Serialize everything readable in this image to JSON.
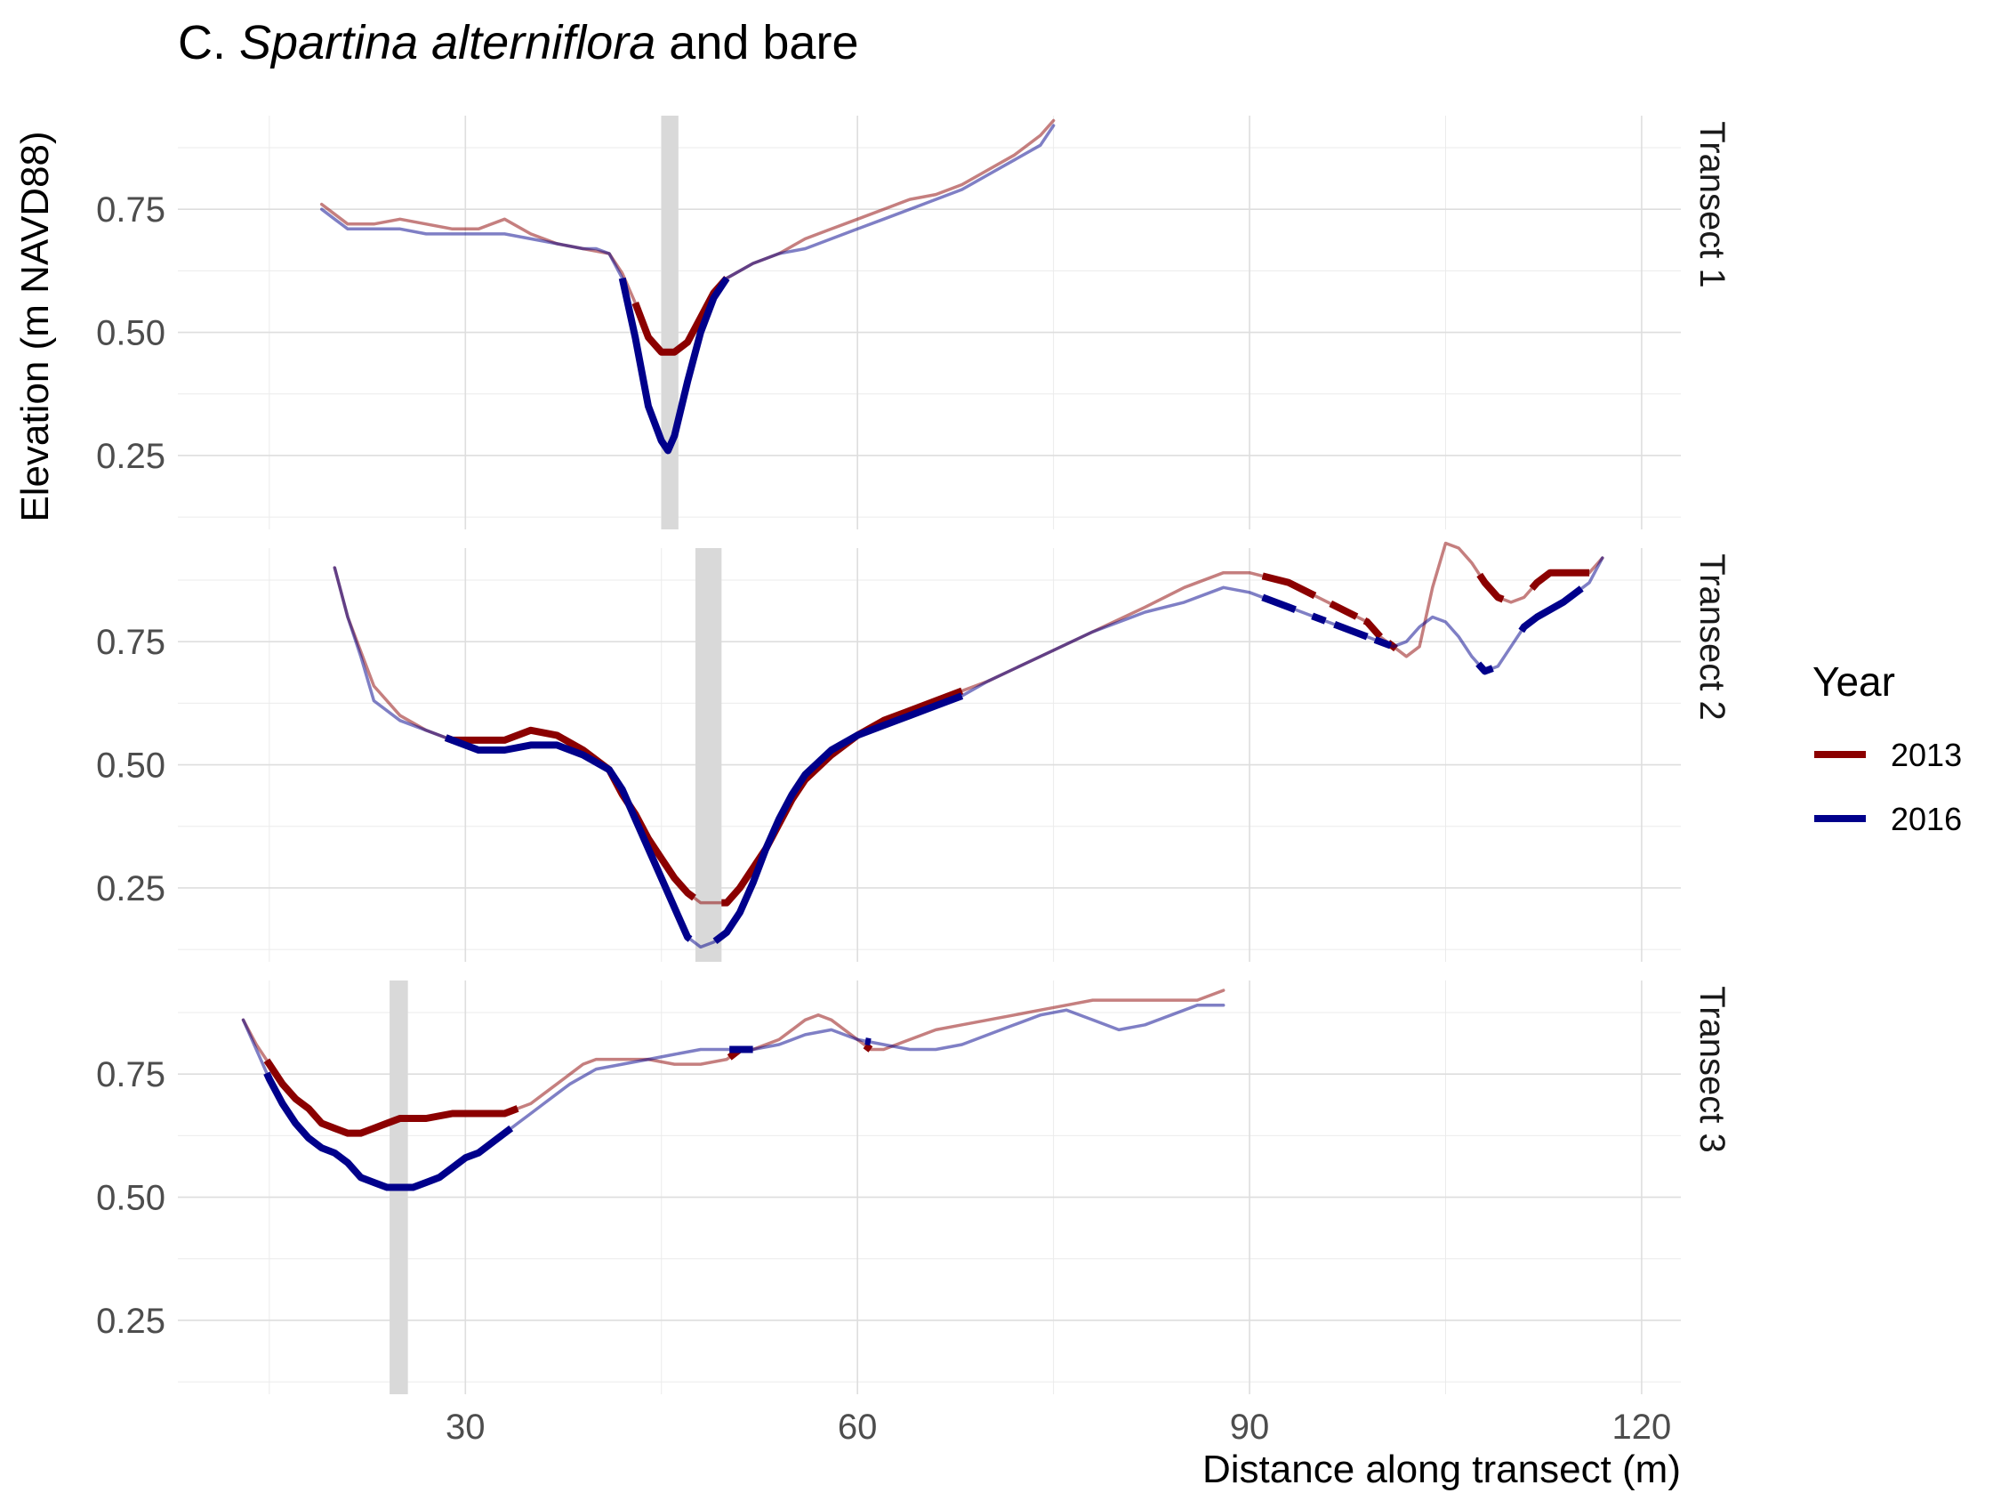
{
  "chart_data": {
    "type": "line",
    "title_prefix": "C.",
    "title_italic": "Spartina alterniflora",
    "title_suffix": "and bare",
    "xlabel": "Distance along transect (m)",
    "ylabel": "Elevation (m NAVD88)",
    "xlim": [
      8,
      123
    ],
    "ylim": [
      0.1,
      0.94
    ],
    "x_ticks": [
      30,
      60,
      90,
      120
    ],
    "y_ticks": [
      0.25,
      0.5,
      0.75
    ],
    "y_tick_labels": [
      "0.25",
      "0.50",
      "0.75"
    ],
    "grid": true,
    "legend": {
      "title": "Year",
      "position": "right",
      "entries": [
        "2013",
        "2016"
      ]
    },
    "colors": {
      "2013": "#8b0000",
      "2016": "#00008b",
      "bar": "#d9d9d9"
    },
    "panels": [
      {
        "label": "Transect 1",
        "bare_band": [
          45,
          46.3
        ],
        "series": [
          {
            "name": "2013",
            "x": [
              19,
              20,
              21,
              23,
              25,
              27,
              29,
              31,
              33,
              35,
              37,
              39,
              41,
              42,
              43,
              44,
              45,
              46,
              47,
              48,
              49,
              50,
              52,
              54,
              56,
              58,
              60,
              62,
              64,
              66,
              68,
              70,
              72,
              74,
              75
            ],
            "y": [
              0.76,
              0.74,
              0.72,
              0.72,
              0.73,
              0.72,
              0.71,
              0.71,
              0.73,
              0.7,
              0.68,
              0.67,
              0.66,
              0.62,
              0.56,
              0.49,
              0.46,
              0.46,
              0.48,
              0.53,
              0.58,
              0.61,
              0.64,
              0.66,
              0.69,
              0.71,
              0.73,
              0.75,
              0.77,
              0.78,
              0.8,
              0.83,
              0.86,
              0.9,
              0.93
            ],
            "bold_ranges": [
              [
                43,
                50
              ]
            ]
          },
          {
            "name": "2016",
            "x": [
              19,
              20,
              21,
              23,
              25,
              27,
              29,
              31,
              33,
              35,
              37,
              39,
              40,
              41,
              42,
              43,
              44,
              45,
              45.5,
              46,
              47,
              48,
              49,
              50,
              52,
              54,
              56,
              58,
              60,
              62,
              64,
              66,
              68,
              70,
              72,
              74,
              75
            ],
            "y": [
              0.75,
              0.73,
              0.71,
              0.71,
              0.71,
              0.7,
              0.7,
              0.7,
              0.7,
              0.69,
              0.68,
              0.67,
              0.67,
              0.66,
              0.61,
              0.49,
              0.35,
              0.28,
              0.26,
              0.29,
              0.4,
              0.5,
              0.57,
              0.61,
              0.64,
              0.66,
              0.67,
              0.69,
              0.71,
              0.73,
              0.75,
              0.77,
              0.79,
              0.82,
              0.85,
              0.88,
              0.92
            ],
            "bold_ranges": [
              [
                42,
                50
              ]
            ]
          }
        ]
      },
      {
        "label": "Transect 2",
        "bare_band": [
          47.6,
          49.6
        ],
        "series": [
          {
            "name": "2013",
            "x": [
              20,
              21,
              22,
              23,
              25,
              27,
              29,
              31,
              33,
              35,
              37,
              39,
              41,
              42,
              43,
              44,
              45,
              46,
              47,
              48,
              49,
              50,
              51,
              52,
              53,
              54,
              55,
              56,
              58,
              60,
              62,
              64,
              66,
              68,
              70,
              74,
              78,
              82,
              85,
              88,
              90,
              93,
              96,
              99,
              100,
              101,
              102,
              103,
              104,
              105,
              106,
              107,
              108,
              109,
              110,
              111,
              112,
              113,
              114,
              116,
              117
            ],
            "y": [
              0.9,
              0.8,
              0.73,
              0.66,
              0.6,
              0.57,
              0.55,
              0.55,
              0.55,
              0.57,
              0.56,
              0.53,
              0.49,
              0.44,
              0.4,
              0.35,
              0.31,
              0.27,
              0.24,
              0.22,
              0.22,
              0.22,
              0.25,
              0.29,
              0.33,
              0.38,
              0.43,
              0.47,
              0.52,
              0.56,
              0.59,
              0.61,
              0.63,
              0.65,
              0.67,
              0.72,
              0.77,
              0.82,
              0.86,
              0.89,
              0.89,
              0.87,
              0.83,
              0.79,
              0.76,
              0.74,
              0.72,
              0.74,
              0.86,
              0.95,
              0.94,
              0.91,
              0.87,
              0.84,
              0.83,
              0.84,
              0.87,
              0.89,
              0.89,
              0.89,
              0.92
            ],
            "bold_ranges": [
              [
                28.5,
                47.5
              ],
              [
                49.6,
                68
              ],
              [
                91,
                95
              ],
              [
                96.2,
                98.2
              ],
              [
                98.8,
                100
              ],
              [
                100.6,
                101.2
              ],
              [
                107.6,
                109.4
              ],
              [
                111.6,
                116
              ]
            ]
          },
          {
            "name": "2016",
            "x": [
              20,
              21,
              22,
              23,
              25,
              27,
              29,
              31,
              33,
              35,
              37,
              39,
              41,
              42,
              43,
              44,
              45,
              46,
              47,
              48,
              49,
              50,
              51,
              52,
              53,
              54,
              55,
              56,
              58,
              60,
              62,
              64,
              66,
              68,
              70,
              74,
              78,
              82,
              85,
              88,
              90,
              93,
              96,
              99,
              100,
              101,
              102,
              103,
              104,
              105,
              106,
              107,
              108,
              109,
              110,
              111,
              112,
              114,
              116,
              117
            ],
            "y": [
              0.9,
              0.8,
              0.72,
              0.63,
              0.59,
              0.57,
              0.55,
              0.53,
              0.53,
              0.54,
              0.54,
              0.52,
              0.49,
              0.45,
              0.39,
              0.33,
              0.27,
              0.21,
              0.15,
              0.13,
              0.14,
              0.16,
              0.2,
              0.26,
              0.33,
              0.39,
              0.44,
              0.48,
              0.53,
              0.56,
              0.58,
              0.6,
              0.62,
              0.64,
              0.67,
              0.72,
              0.77,
              0.81,
              0.83,
              0.86,
              0.85,
              0.82,
              0.79,
              0.76,
              0.75,
              0.74,
              0.75,
              0.78,
              0.8,
              0.79,
              0.76,
              0.72,
              0.69,
              0.7,
              0.74,
              0.78,
              0.8,
              0.83,
              0.87,
              0.92
            ],
            "bold_ranges": [
              [
                28.5,
                47.2
              ],
              [
                49.1,
                68
              ],
              [
                91,
                93.5
              ],
              [
                94.8,
                95.8
              ],
              [
                96.5,
                99
              ],
              [
                99.6,
                100.8
              ],
              [
                107.5,
                108.6
              ],
              [
                110.8,
                115.4
              ]
            ]
          }
        ]
      },
      {
        "label": "Transect 3",
        "bare_band": [
          24.2,
          25.6
        ],
        "series": [
          {
            "name": "2013",
            "x": [
              13,
              14,
              15,
              16,
              17,
              18,
              19,
              20,
              21,
              22,
              23,
              24,
              25,
              27,
              29,
              31,
              33,
              34,
              35,
              36,
              37,
              38,
              39,
              40,
              42,
              44,
              46,
              48,
              50,
              51,
              52,
              54,
              56,
              57,
              58,
              60,
              61,
              62,
              64,
              66,
              68,
              70,
              72,
              74,
              76,
              78,
              80,
              82,
              84,
              86,
              88
            ],
            "y": [
              0.86,
              0.81,
              0.77,
              0.73,
              0.7,
              0.68,
              0.65,
              0.64,
              0.63,
              0.63,
              0.64,
              0.65,
              0.66,
              0.66,
              0.67,
              0.67,
              0.67,
              0.68,
              0.69,
              0.71,
              0.73,
              0.75,
              0.77,
              0.78,
              0.78,
              0.78,
              0.77,
              0.77,
              0.78,
              0.8,
              0.8,
              0.82,
              0.86,
              0.87,
              0.86,
              0.82,
              0.8,
              0.8,
              0.82,
              0.84,
              0.85,
              0.86,
              0.87,
              0.88,
              0.89,
              0.9,
              0.9,
              0.9,
              0.9,
              0.9,
              0.92
            ],
            "bold_ranges": [
              [
                14.8,
                34
              ],
              [
                50.2,
                51.8
              ],
              [
                60.6,
                61
              ]
            ]
          },
          {
            "name": "2016",
            "x": [
              13,
              14,
              15,
              16,
              17,
              18,
              19,
              20,
              21,
              22,
              23,
              24,
              25,
              26,
              27,
              28,
              29,
              30,
              31,
              32,
              33,
              34,
              35,
              36,
              37,
              38,
              40,
              42,
              44,
              46,
              48,
              50,
              51,
              52,
              54,
              56,
              58,
              60,
              62,
              64,
              66,
              68,
              70,
              72,
              74,
              76,
              78,
              80,
              82,
              84,
              86,
              88
            ],
            "y": [
              0.86,
              0.8,
              0.74,
              0.69,
              0.65,
              0.62,
              0.6,
              0.59,
              0.57,
              0.54,
              0.53,
              0.52,
              0.52,
              0.52,
              0.53,
              0.54,
              0.56,
              0.58,
              0.59,
              0.61,
              0.63,
              0.65,
              0.67,
              0.69,
              0.71,
              0.73,
              0.76,
              0.77,
              0.78,
              0.79,
              0.8,
              0.8,
              0.8,
              0.8,
              0.81,
              0.83,
              0.84,
              0.82,
              0.81,
              0.8,
              0.8,
              0.81,
              0.83,
              0.85,
              0.87,
              0.88,
              0.86,
              0.84,
              0.85,
              0.87,
              0.89,
              0.89
            ],
            "bold_ranges": [
              [
                14.8,
                33.5
              ],
              [
                50.2,
                52
              ],
              [
                60.6,
                61
              ]
            ]
          }
        ]
      }
    ]
  }
}
